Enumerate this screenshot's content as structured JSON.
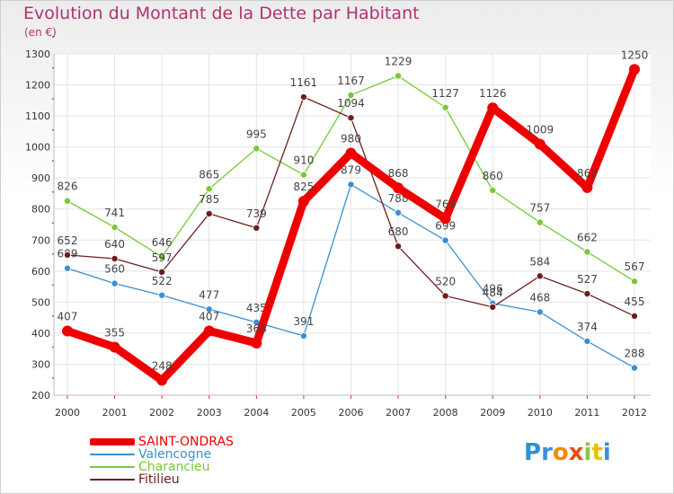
{
  "header": {
    "title": "Evolution du Montant de la Dette par Habitant",
    "subtitle": "(en €)"
  },
  "brand": {
    "text": "Proxiti",
    "colors": [
      "#2f8fd0",
      "#3b8fd8",
      "#f08c00",
      "#e84e1b",
      "#8dc63f",
      "#e9c000",
      "#3b8fd8"
    ]
  },
  "colors": {
    "title": "#b4316f",
    "axis_tick": "#d0206a",
    "grid": "#e4e4e4"
  },
  "chart_data": {
    "type": "line",
    "title": "Evolution du Montant de la Dette par Habitant",
    "ylabel": "(en €)",
    "xlabel": "",
    "ylim": [
      200,
      1300
    ],
    "yticks": [
      200,
      300,
      400,
      500,
      600,
      700,
      800,
      900,
      1000,
      1100,
      1200,
      1300
    ],
    "categories": [
      "2000",
      "2001",
      "2002",
      "2003",
      "2004",
      "2005",
      "2006",
      "2007",
      "2008",
      "2009",
      "2010",
      "2011",
      "2012"
    ],
    "grid": true,
    "legend_position": "bottom-left",
    "series": [
      {
        "name": "SAINT-ONDRAS",
        "color": "#ee0000",
        "values": [
          407,
          355,
          248,
          407,
          368,
          825,
          980,
          868,
          769,
          1126,
          1009,
          869,
          1250
        ],
        "labels": [
          "407",
          "355",
          "248",
          "407",
          "368",
          "825",
          "980",
          "868",
          "769",
          "1126",
          "1009",
          "869",
          "1250"
        ]
      },
      {
        "name": "Valencogne",
        "color": "#3b8fd0",
        "values": [
          609,
          560,
          522,
          477,
          435,
          391,
          879,
          788,
          699,
          496,
          468,
          374,
          288
        ],
        "labels": [
          "609",
          "560",
          "522",
          "477",
          "435",
          "391",
          "879",
          "788",
          "699",
          "496",
          "468",
          "374",
          "288"
        ]
      },
      {
        "name": "Charancieu",
        "color": "#77c934",
        "values": [
          826,
          741,
          646,
          865,
          995,
          910,
          1167,
          1229,
          1127,
          860,
          757,
          662,
          567
        ],
        "labels": [
          "826",
          "741",
          "646",
          "865",
          "995",
          "910",
          "1167",
          "1229",
          "1127",
          "860",
          "757",
          "662",
          "567"
        ]
      },
      {
        "name": "Fitilieu",
        "color": "#6e1d1d",
        "values": [
          652,
          640,
          597,
          785,
          739,
          1161,
          1094,
          680,
          520,
          484,
          584,
          527,
          455
        ],
        "labels": [
          "652",
          "640",
          "597",
          "785",
          "739",
          "1161",
          "1094",
          "680",
          "520",
          "484",
          "584",
          "527",
          "455"
        ]
      }
    ]
  }
}
